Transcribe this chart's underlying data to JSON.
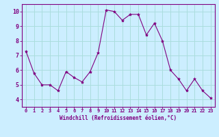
{
  "hours": [
    0,
    1,
    2,
    3,
    4,
    5,
    6,
    7,
    8,
    9,
    10,
    11,
    12,
    13,
    14,
    15,
    16,
    17,
    18,
    19,
    20,
    21,
    22,
    23
  ],
  "values": [
    7.3,
    5.8,
    5.0,
    5.0,
    4.6,
    5.9,
    5.5,
    5.2,
    5.9,
    7.2,
    10.1,
    10.0,
    9.4,
    9.8,
    9.8,
    8.4,
    9.2,
    8.0,
    6.0,
    5.4,
    4.6,
    5.4,
    4.6,
    4.1
  ],
  "line_color": "#800080",
  "marker": "*",
  "marker_size": 3,
  "bg_color": "#cceeff",
  "grid_color": "#aadddd",
  "axis_color": "#800080",
  "xlabel": "Windchill (Refroidissement éolien,°C)",
  "ylim": [
    3.5,
    10.5
  ],
  "yticks": [
    4,
    5,
    6,
    7,
    8,
    9,
    10
  ],
  "font_color": "#800080"
}
